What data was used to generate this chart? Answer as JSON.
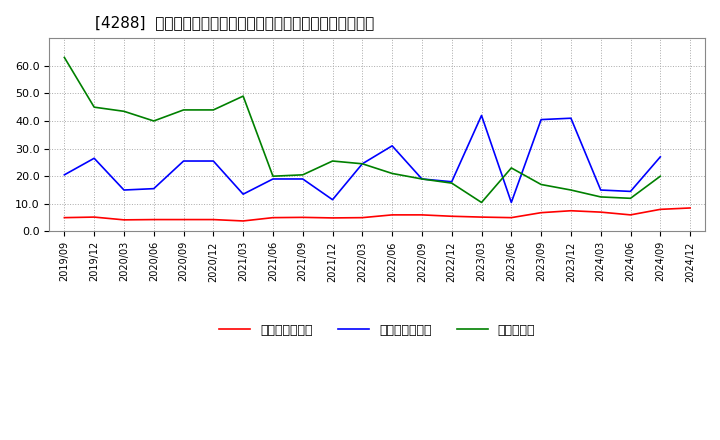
{
  "title": "[4288]  売上債権回転率、買入債務回転率、在庫回転率の推移",
  "x_labels": [
    "2019/09",
    "2019/12",
    "2020/03",
    "2020/06",
    "2020/09",
    "2020/12",
    "2021/03",
    "2021/06",
    "2021/09",
    "2021/12",
    "2022/03",
    "2022/06",
    "2022/09",
    "2022/12",
    "2023/03",
    "2023/06",
    "2023/09",
    "2023/12",
    "2024/03",
    "2024/06",
    "2024/09",
    "2024/12"
  ],
  "receivables_turnover": [
    5.0,
    5.2,
    4.2,
    4.3,
    4.3,
    4.3,
    3.8,
    5.0,
    5.1,
    4.9,
    5.0,
    6.0,
    6.0,
    5.5,
    5.2,
    5.0,
    6.8,
    7.5,
    7.0,
    6.0,
    8.0,
    8.5
  ],
  "payables_turnover": [
    20.5,
    26.5,
    15.0,
    15.5,
    25.5,
    25.5,
    13.5,
    19.0,
    19.0,
    11.5,
    24.5,
    31.0,
    19.0,
    18.0,
    42.0,
    10.5,
    40.5,
    41.0,
    15.0,
    14.5,
    27.0,
    null
  ],
  "inventory_turnover": [
    63.0,
    45.0,
    43.5,
    40.0,
    44.0,
    44.0,
    49.0,
    20.0,
    20.5,
    25.5,
    24.5,
    21.0,
    19.0,
    17.5,
    10.5,
    23.0,
    17.0,
    15.0,
    12.5,
    12.0,
    20.0,
    null
  ],
  "colors": {
    "receivables": "#ff0000",
    "payables": "#0000ff",
    "inventory": "#008000"
  },
  "legend_labels": [
    "売上債権回転率",
    "買入債務回転率",
    "在庫回転率"
  ],
  "ylim": [
    0,
    70
  ],
  "yticks": [
    0.0,
    10.0,
    20.0,
    30.0,
    40.0,
    50.0,
    60.0
  ],
  "background_color": "#ffffff",
  "grid_color": "#aaaaaa",
  "title_fontsize": 11
}
